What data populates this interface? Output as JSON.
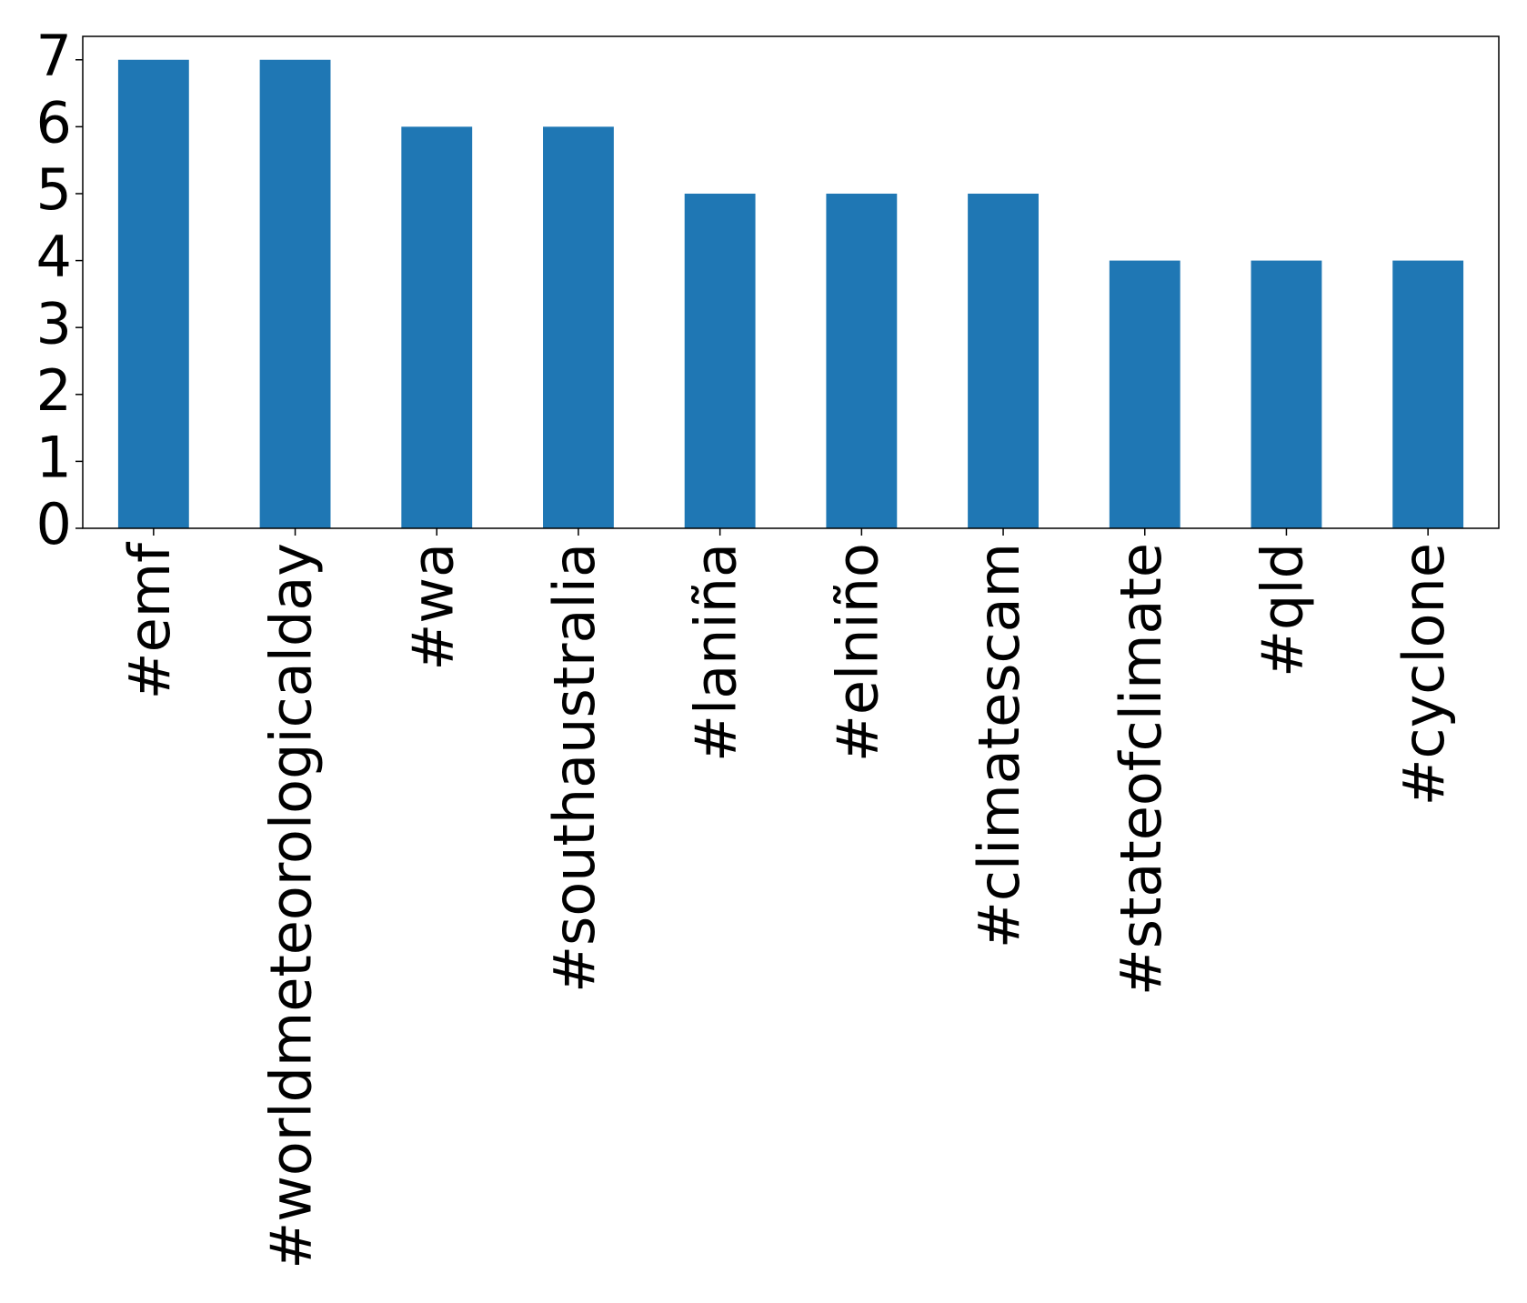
{
  "chart_data": {
    "type": "bar",
    "categories": [
      "#emf",
      "#worldmeteorologicalday",
      "#wa",
      "#southaustralia",
      "#laniña",
      "#elniño",
      "#climatescam",
      "#stateofclimate",
      "#qld",
      "#cyclone"
    ],
    "values": [
      7,
      7,
      6,
      6,
      5,
      5,
      5,
      4,
      4,
      4
    ],
    "color": "#1f77b4",
    "ylim": [
      0,
      7.35
    ],
    "yticks": [
      0,
      1,
      2,
      3,
      4,
      5,
      6,
      7
    ],
    "grid": false
  }
}
